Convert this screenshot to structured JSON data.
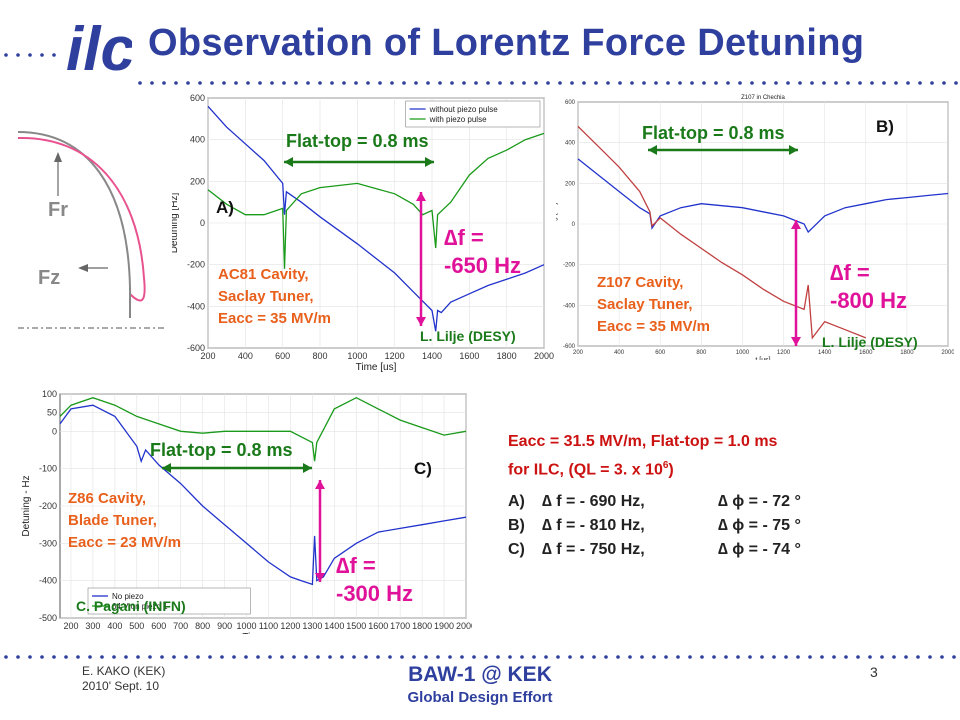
{
  "title": "Observation of Lorentz Force Detuning",
  "logo_text": "ilc",
  "colors": {
    "title": "#2f3f9e",
    "note_orange": "#e8601c",
    "note_green": "#1a7a1a",
    "arrow_magenta": "#e0129a",
    "summary_red": "#cc1111",
    "series_blue": "#2233cc",
    "series_green": "#1a9a1a",
    "series_red": "#c04040",
    "dots": "#2f3f9e"
  },
  "sketch": {
    "fr_label": "Fr",
    "fz_label": "Fz"
  },
  "panel_a": {
    "label": "A)",
    "flattop": "Flat-top = 0.8 ms",
    "df_line1": "∆f =",
    "df_line2": "-650 Hz",
    "cavity": [
      "AC81 Cavity,",
      "Saclay Tuner,",
      "Eacc = 35 MV/m"
    ],
    "credit": "L. Lilje (DESY)"
  },
  "panel_b": {
    "label": "B)",
    "flattop": "Flat-top = 0.8 ms",
    "df_line1": "∆f =",
    "df_line2": "-800 Hz",
    "cavity": [
      "Z107 Cavity,",
      "Saclay Tuner,",
      "Eacc = 35 MV/m"
    ],
    "credit": "L. Lilje (DESY)"
  },
  "panel_c": {
    "label": "C)",
    "flattop": "Flat-top = 0.8 ms",
    "df_line1": "∆f =",
    "df_line2": "-300 Hz",
    "cavity": [
      "Z86 Cavity,",
      "Blade Tuner,",
      "Eacc = 23 MV/m"
    ],
    "credit": "C. Pagani (INFN)"
  },
  "summary": {
    "line1": "Eacc = 31.5 MV/m,  Flat-top = 1.0 ms",
    "line2_pre": "for ILC,   (QL = 3. x 10",
    "line2_sup": "6",
    "line2_post": ")",
    "rows": [
      {
        "label": "A)",
        "df": "∆ f = - 690 Hz,",
        "dphi": "∆ ϕ = - 72 °"
      },
      {
        "label": "B)",
        "df": "∆ f = - 810 Hz,",
        "dphi": "∆ ϕ = - 75 °"
      },
      {
        "label": "C)",
        "df": "∆ f = - 750 Hz,",
        "dphi": "∆ ϕ = - 74 °"
      }
    ]
  },
  "footer": {
    "author": "E. KAKO (KEK)",
    "date": "2010' Sept. 10",
    "event": "BAW-1 @ KEK",
    "org": "Global Design Effort",
    "page": "3"
  },
  "chart_data": [
    {
      "id": "A",
      "type": "line",
      "title": "",
      "xlabel": "Time [us]",
      "ylabel": "Detuning [Hz]",
      "xlim": [
        200,
        2000
      ],
      "ylim": [
        -600,
        600
      ],
      "xticks": [
        200,
        400,
        600,
        800,
        1000,
        1200,
        1400,
        1600,
        1800,
        2000
      ],
      "yticks": [
        -600,
        -400,
        -200,
        0,
        200,
        400,
        600
      ],
      "grid": true,
      "legend": "top-right",
      "series": [
        {
          "name": "without piezo pulse",
          "color": "#2233cc",
          "x": [
            200,
            300,
            400,
            500,
            600,
            610,
            620,
            700,
            800,
            1000,
            1200,
            1300,
            1400,
            1420,
            1430,
            1450,
            1500,
            1600,
            1700,
            1800,
            1900,
            2000
          ],
          "y": [
            560,
            460,
            380,
            300,
            190,
            40,
            150,
            100,
            30,
            -100,
            -240,
            -330,
            -420,
            -520,
            -420,
            -430,
            -380,
            -340,
            -300,
            -270,
            -240,
            -200
          ]
        },
        {
          "name": "with piezo pulse",
          "color": "#1a9a1a",
          "x": [
            200,
            300,
            400,
            500,
            600,
            610,
            620,
            700,
            800,
            1000,
            1200,
            1300,
            1350,
            1400,
            1420,
            1430,
            1500,
            1600,
            1700,
            1800,
            1900,
            2000
          ],
          "y": [
            160,
            90,
            40,
            40,
            70,
            -220,
            60,
            140,
            170,
            190,
            140,
            90,
            40,
            60,
            -120,
            40,
            100,
            230,
            310,
            350,
            400,
            430
          ]
        }
      ]
    },
    {
      "id": "B",
      "type": "line",
      "title": "Z107 in Chechia",
      "xlabel": "t [us]",
      "ylabel": "Detuning [Hz]",
      "xlim": [
        200,
        2000
      ],
      "ylim": [
        -600,
        600
      ],
      "xticks": [
        200,
        400,
        600,
        800,
        1000,
        1200,
        1400,
        1600,
        1800,
        2000
      ],
      "yticks": [
        -600,
        -400,
        -200,
        0,
        200,
        400,
        600
      ],
      "grid": true,
      "legend": "none",
      "series": [
        {
          "name": "",
          "color": "#2233cc",
          "x": [
            200,
            300,
            400,
            500,
            550,
            560,
            600,
            700,
            800,
            900,
            1000,
            1100,
            1200,
            1300,
            1320,
            1400,
            1500,
            1600,
            1700,
            1800,
            1900,
            2000
          ],
          "y": [
            320,
            240,
            160,
            80,
            50,
            -20,
            40,
            80,
            100,
            90,
            80,
            60,
            40,
            0,
            -40,
            40,
            80,
            100,
            120,
            130,
            140,
            150
          ]
        },
        {
          "name": "",
          "color": "#c04040",
          "x": [
            200,
            300,
            400,
            500,
            550,
            560,
            600,
            700,
            800,
            900,
            1000,
            1100,
            1200,
            1300,
            1320,
            1340,
            1400,
            1500,
            1600
          ],
          "y": [
            480,
            380,
            280,
            160,
            60,
            -10,
            30,
            -50,
            -120,
            -190,
            -250,
            -320,
            -380,
            -420,
            -300,
            -560,
            -480,
            -520,
            -560
          ]
        }
      ]
    },
    {
      "id": "C",
      "type": "line",
      "title": "",
      "xlabel": "Time - us",
      "ylabel": "Detuning - Hz",
      "xlim": [
        150,
        2000
      ],
      "ylim": [
        -500,
        100
      ],
      "xticks": [
        200,
        300,
        400,
        500,
        600,
        700,
        800,
        900,
        1000,
        1100,
        1200,
        1300,
        1400,
        1500,
        1600,
        1700,
        1800,
        1900,
        2000
      ],
      "yticks": [
        -500,
        -400,
        -300,
        -200,
        -100,
        0,
        50,
        100
      ],
      "grid": true,
      "legend": "bottom-left",
      "series": [
        {
          "name": "No piezo",
          "color": "#2233cc",
          "x": [
            150,
            200,
            300,
            400,
            450,
            500,
            520,
            540,
            600,
            700,
            800,
            900,
            1000,
            1100,
            1200,
            1250,
            1300,
            1310,
            1320,
            1350,
            1400,
            1500,
            1600,
            1700,
            1800,
            1900,
            2000
          ],
          "y": [
            20,
            60,
            70,
            40,
            0,
            -40,
            -80,
            -50,
            -90,
            -140,
            -200,
            -250,
            -300,
            -350,
            -390,
            -400,
            -410,
            -280,
            -400,
            -390,
            -340,
            -300,
            -270,
            -260,
            -250,
            -240,
            -230
          ]
        },
        {
          "name": "64 V on piezo 1",
          "color": "#1a9a1a",
          "x": [
            150,
            200,
            300,
            400,
            500,
            600,
            700,
            800,
            900,
            1000,
            1100,
            1200,
            1300,
            1310,
            1320,
            1400,
            1500,
            1600,
            1700,
            1800,
            1900,
            2000
          ],
          "y": [
            40,
            70,
            90,
            70,
            40,
            20,
            0,
            -5,
            0,
            0,
            0,
            0,
            -30,
            -80,
            -30,
            60,
            90,
            60,
            30,
            10,
            -10,
            0
          ]
        }
      ]
    }
  ]
}
